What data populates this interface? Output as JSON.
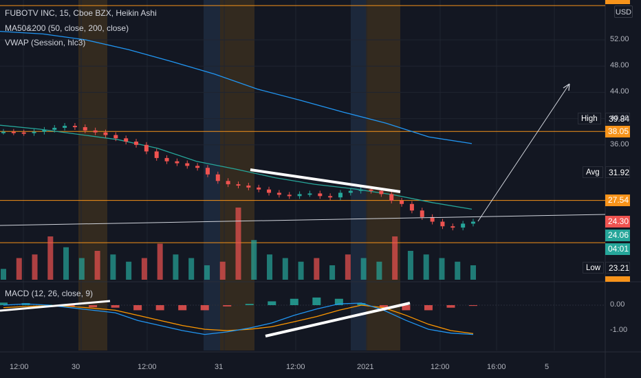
{
  "header": {
    "title": "FUBOTV INC, 15, Cboe BZX, Heikin Ashi",
    "indicator1": "MA50&200 (50, close, 200, close)",
    "indicator2": "VWAP (Session, hlc3)",
    "currency": "USD"
  },
  "macd_panel": {
    "title": "MACD (12, 26, close, 9)"
  },
  "colors": {
    "background": "#131722",
    "up": "#26a69a",
    "down": "#ef5350",
    "ma50": "#26a69a",
    "ma200": "#2196f3",
    "macd_line": "#2196f3",
    "signal_line": "#ff9800",
    "horizontal_lines": "#f7931a",
    "session_orange": "#3a2e1e",
    "session_blue": "#1e2b3f"
  },
  "chart_data": [
    {
      "type": "candlestick",
      "style": "Heikin Ashi",
      "symbol": "FUBOTV INC",
      "timeframe": "15",
      "exchange": "Cboe BZX",
      "y_ticks": [
        "52.00",
        "48.00",
        "44.00",
        "40.00",
        "36.00"
      ],
      "x_ticks": [
        "12:00",
        "30",
        "12:00",
        "31",
        "12:00",
        "2021",
        "12:00",
        "16:00",
        "5"
      ],
      "price_labels": [
        {
          "name": "High",
          "value": "39.84"
        },
        {
          "name": "",
          "value": "38.05"
        },
        {
          "name": "Avg",
          "value": "31.92"
        },
        {
          "name": "",
          "value": "27.54"
        },
        {
          "name": "",
          "value": "24.30"
        },
        {
          "name": "",
          "value": "24.06"
        },
        {
          "name": "",
          "value": "04:01"
        },
        {
          "name": "Low",
          "value": "23.21"
        }
      ],
      "horizontal_levels": [
        57.22,
        38.05,
        27.54,
        21.1
      ],
      "ohlc_close_approx": [
        38.0,
        37.9,
        37.8,
        38.0,
        38.3,
        38.6,
        38.9,
        38.7,
        38.2,
        37.9,
        37.5,
        37.0,
        36.5,
        36.0,
        35.0,
        34.0,
        33.5,
        33.2,
        32.8,
        32.5,
        31.5,
        30.5,
        30.0,
        29.8,
        29.5,
        29.2,
        28.7,
        28.4,
        28.2,
        28.5,
        28.6,
        28.2,
        28.0,
        28.7,
        29.0,
        29.2,
        29.0,
        28.5,
        27.5,
        27.0,
        26.0,
        25.0,
        24.3,
        23.6,
        23.4,
        24.0,
        24.3
      ],
      "ma50_approx": [
        39.0,
        38.4,
        37.6,
        36.8,
        35.5,
        33.5,
        32.3,
        31.0,
        30.0,
        29.3,
        28.4,
        27.2,
        26.2
      ],
      "ma200_approx": [
        53.3,
        52.9,
        52.0,
        50.5,
        48.7,
        46.8,
        44.5,
        42.8,
        41.0,
        39.3,
        37.2,
        36.2
      ],
      "annotations": [
        "upward projection arrow",
        "bearish price trend line",
        "bullish MACD trend line"
      ]
    },
    {
      "type": "bar",
      "name": "Volume",
      "relative_values": [
        0.15,
        0.3,
        0.35,
        0.6,
        0.45,
        0.3,
        0.4,
        0.35,
        0.25,
        0.3,
        0.5,
        0.35,
        0.3,
        0.2,
        0.25,
        1.0,
        0.55,
        0.35,
        0.3,
        0.25,
        0.3,
        0.2,
        0.35,
        0.3,
        0.25,
        0.6,
        0.4,
        0.35,
        0.3,
        0.25,
        0.2
      ]
    },
    {
      "type": "line",
      "name": "MACD (12, 26, close, 9)",
      "y_ticks": [
        "0.00",
        "-1.00"
      ],
      "ylim": [
        -1.3,
        0.15
      ],
      "macd_approx": [
        0.0,
        0.05,
        0.0,
        -0.1,
        -0.2,
        -0.3,
        -0.6,
        -0.8,
        -1.0,
        -1.15,
        -1.05,
        -0.9,
        -0.7,
        -0.4,
        -0.15,
        0.05,
        0.08,
        -0.2,
        -0.6,
        -0.95,
        -1.1,
        -1.15
      ],
      "signal_approx": [
        -0.1,
        -0.05,
        -0.02,
        -0.05,
        -0.12,
        -0.2,
        -0.4,
        -0.6,
        -0.8,
        -0.95,
        -1.0,
        -0.95,
        -0.85,
        -0.65,
        -0.45,
        -0.2,
        0.0,
        -0.1,
        -0.4,
        -0.75,
        -1.0,
        -1.12
      ],
      "histogram_approx": [
        0.1,
        0.08,
        0.02,
        -0.05,
        -0.08,
        -0.1,
        -0.2,
        -0.2,
        -0.2,
        -0.2,
        -0.05,
        0.05,
        0.15,
        0.25,
        0.3,
        0.25,
        0.08,
        -0.1,
        -0.2,
        -0.2,
        -0.1,
        -0.03
      ]
    }
  ]
}
